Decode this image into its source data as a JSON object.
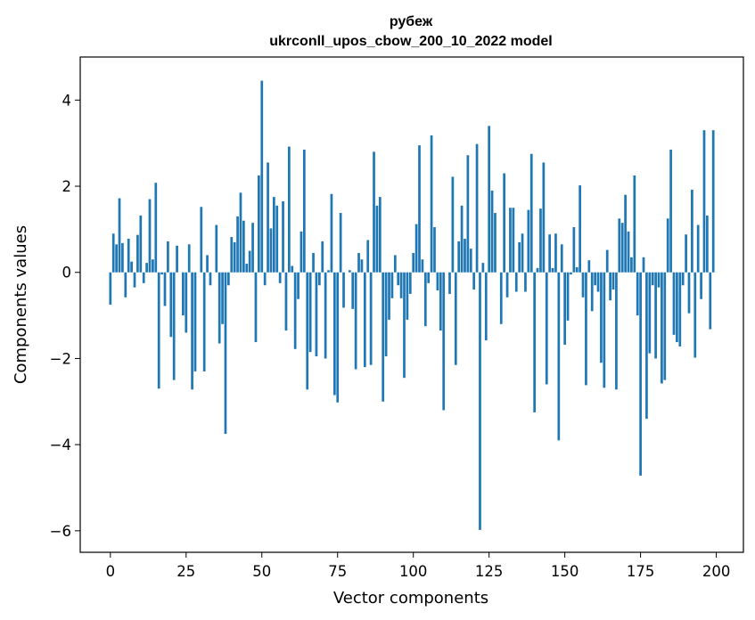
{
  "chart_data": {
    "type": "bar",
    "title_line1": "рубеж",
    "title_line2": "ukrconll_upos_cbow_200_10_2022 model",
    "xlabel": "Vector components",
    "ylabel": "Components values",
    "xlim": [
      -9.95,
      208.95
    ],
    "ylim": [
      -6.5,
      5.0
    ],
    "xticks": [
      0,
      25,
      50,
      75,
      100,
      125,
      150,
      175,
      200
    ],
    "yticks": [
      -6,
      -4,
      -2,
      0,
      2,
      4
    ],
    "bar_color": "#1f77b4",
    "grid": false,
    "values": [
      -0.75,
      0.9,
      0.65,
      1.72,
      0.68,
      -0.58,
      0.78,
      0.25,
      -0.35,
      0.87,
      1.32,
      -0.25,
      0.22,
      1.7,
      0.3,
      2.08,
      -2.7,
      -0.05,
      -0.78,
      0.72,
      -1.5,
      -2.5,
      0.62,
      0.0,
      -1.0,
      -1.4,
      0.65,
      -2.72,
      -2.3,
      0.0,
      1.52,
      -2.3,
      0.4,
      -0.3,
      0.0,
      1.1,
      -1.65,
      -1.2,
      -3.75,
      -0.3,
      0.82,
      0.7,
      1.3,
      1.85,
      1.2,
      0.2,
      0.5,
      1.15,
      -1.62,
      2.25,
      4.45,
      -0.3,
      2.55,
      1.02,
      1.75,
      1.55,
      -0.25,
      1.65,
      -1.35,
      2.92,
      0.15,
      -1.78,
      -0.62,
      0.95,
      2.85,
      -2.72,
      -1.85,
      0.45,
      -1.95,
      -0.3,
      0.72,
      -2.0,
      0.05,
      1.82,
      -2.85,
      -3.02,
      1.38,
      -0.82,
      0.0,
      0.05,
      -0.85,
      -2.25,
      0.45,
      0.3,
      -2.2,
      0.75,
      -2.15,
      2.8,
      1.55,
      1.75,
      -3.0,
      -1.95,
      -1.1,
      -0.6,
      0.4,
      -0.3,
      -0.6,
      -2.45,
      -1.1,
      -0.5,
      0.45,
      1.12,
      2.95,
      0.3,
      -1.25,
      -0.25,
      3.18,
      1.05,
      -0.42,
      -1.35,
      -3.2,
      0.0,
      -0.5,
      2.22,
      -2.15,
      0.72,
      1.55,
      0.78,
      2.72,
      0.55,
      -0.4,
      2.98,
      -5.98,
      0.22,
      -1.58,
      3.4,
      1.9,
      1.38,
      0.0,
      -1.2,
      2.3,
      -0.58,
      1.5,
      1.5,
      -0.45,
      0.7,
      0.9,
      -0.45,
      1.45,
      2.75,
      -3.25,
      0.1,
      1.48,
      2.55,
      -2.6,
      0.88,
      0.1,
      0.9,
      -3.9,
      0.65,
      -1.68,
      -1.12,
      -0.05,
      1.05,
      0.12,
      2.02,
      -0.58,
      -2.62,
      0.28,
      -0.9,
      -0.3,
      -0.45,
      -2.1,
      -2.68,
      0.52,
      -0.65,
      -0.4,
      -2.72,
      1.25,
      1.15,
      1.8,
      0.95,
      0.35,
      2.25,
      -1.0,
      -4.72,
      0.35,
      -3.4,
      -1.88,
      -0.3,
      -2.0,
      -0.35,
      -2.58,
      -2.5,
      1.25,
      2.85,
      -1.45,
      -1.62,
      -1.72,
      -0.3,
      0.88,
      -0.95,
      1.92,
      -1.98,
      1.1,
      -0.62,
      3.3,
      1.32,
      -1.32,
      3.3
    ]
  }
}
